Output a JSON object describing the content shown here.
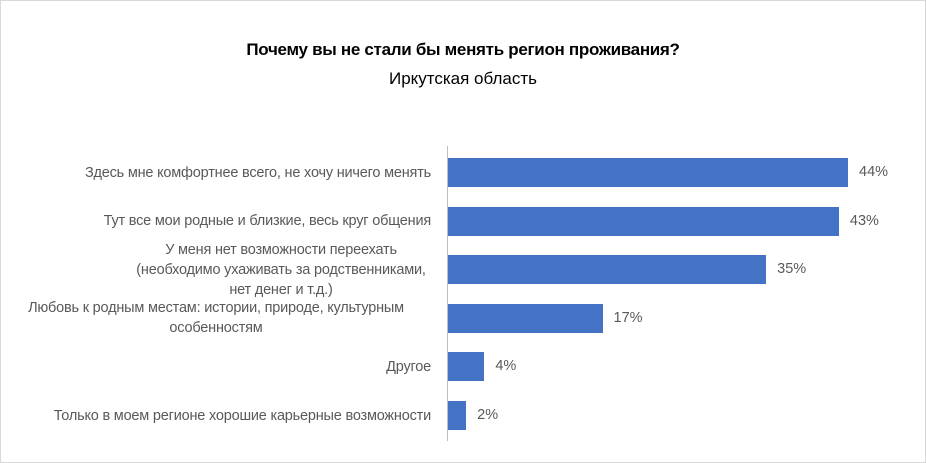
{
  "chart_data": {
    "type": "bar",
    "orientation": "horizontal",
    "title": "Почему вы не стали бы менять регион проживания?",
    "subtitle": "Иркутская область",
    "categories": [
      "Здесь мне комфортнее всего, не хочу ничего менять",
      "Тут все мои родные и близкие, весь круг общения",
      "У меня нет возможности переехать (необходимо ухаживать за родственниками, нет денег и т.д.)",
      "Любовь к родным местам: истории, природе, культурным особенностям",
      "Другое",
      "Только в моем регионе хорошие карьерные возможности"
    ],
    "values": [
      44,
      43,
      35,
      17,
      4,
      2
    ],
    "data_labels": [
      "44%",
      "43%",
      "35%",
      "17%",
      "4%",
      "2%"
    ],
    "unit": "%",
    "xlim": [
      0,
      44
    ],
    "grid": false,
    "legend": "none",
    "bar_color": "#4472c4"
  }
}
